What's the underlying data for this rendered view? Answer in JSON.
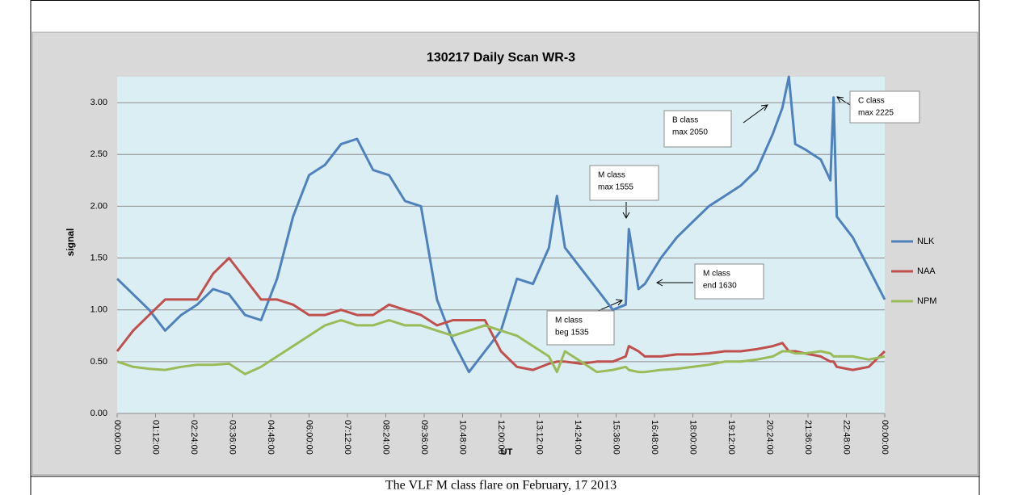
{
  "caption": "The VLF M class flare on February, 17 2013",
  "chart_data": {
    "type": "line",
    "title": "130217 Daily Scan WR-3",
    "ylabel": "signal",
    "xlabel": "UT",
    "xlim": [
      0,
      24
    ],
    "ylim": [
      0,
      3.25
    ],
    "grid": true,
    "legend": "right",
    "yticks": [
      {
        "value": 0,
        "label": "0.00"
      },
      {
        "value": 0.5,
        "label": "0.50"
      },
      {
        "value": 1,
        "label": "1.00"
      },
      {
        "value": 1.5,
        "label": "1.50"
      },
      {
        "value": 2,
        "label": "2.00"
      },
      {
        "value": 2.5,
        "label": "2.50"
      },
      {
        "value": 3,
        "label": "3.00"
      }
    ],
    "xticks": [
      {
        "value": 0,
        "label": "00:00:00"
      },
      {
        "value": 1.2,
        "label": "01:12:00"
      },
      {
        "value": 2.4,
        "label": "02:24:00"
      },
      {
        "value": 3.6,
        "label": "03:36:00"
      },
      {
        "value": 4.8,
        "label": "04:48:00"
      },
      {
        "value": 6,
        "label": "06:00:00"
      },
      {
        "value": 7.2,
        "label": "07:12:00"
      },
      {
        "value": 8.4,
        "label": "08:24:00"
      },
      {
        "value": 9.6,
        "label": "09:36:00"
      },
      {
        "value": 10.8,
        "label": "10:48:00"
      },
      {
        "value": 12,
        "label": "12:00:00"
      },
      {
        "value": 13.2,
        "label": "13:12:00"
      },
      {
        "value": 14.4,
        "label": "14:24:00"
      },
      {
        "value": 15.6,
        "label": "15:36:00"
      },
      {
        "value": 16.8,
        "label": "16:48:00"
      },
      {
        "value": 18,
        "label": "18:00:00"
      },
      {
        "value": 19.2,
        "label": "19:12:00"
      },
      {
        "value": 20.4,
        "label": "20:24:00"
      },
      {
        "value": 21.6,
        "label": "21:36:00"
      },
      {
        "value": 22.8,
        "label": "22:48:00"
      },
      {
        "value": 24,
        "label": "00:00:00"
      }
    ],
    "x": [
      0,
      0.5,
      1,
      1.5,
      2,
      2.5,
      3,
      3.5,
      4,
      4.5,
      5,
      5.5,
      6,
      6.5,
      7,
      7.5,
      8,
      8.5,
      9,
      9.5,
      10,
      10.5,
      11,
      11.5,
      12,
      12.5,
      13,
      13.5,
      13.75,
      14,
      14.5,
      15,
      15.5,
      15.9,
      16,
      16.3,
      16.5,
      17,
      17.5,
      18,
      18.5,
      19,
      19.5,
      20,
      20.5,
      20.8,
      21,
      21.2,
      21.5,
      22,
      22.3,
      22.4,
      22.5,
      23,
      23.5,
      24
    ],
    "series": [
      {
        "name": "NLK",
        "color": "#4f81bd",
        "values": [
          1.3,
          1.15,
          1.0,
          0.8,
          0.95,
          1.05,
          1.2,
          1.15,
          0.95,
          0.9,
          1.3,
          1.9,
          2.3,
          2.4,
          2.6,
          2.65,
          2.35,
          2.3,
          2.05,
          2.0,
          1.1,
          0.7,
          0.4,
          0.6,
          0.8,
          1.3,
          1.25,
          1.6,
          2.1,
          1.6,
          1.4,
          1.2,
          1.0,
          1.05,
          1.78,
          1.2,
          1.25,
          1.5,
          1.7,
          1.85,
          2.0,
          2.1,
          2.2,
          2.35,
          2.7,
          2.95,
          3.25,
          2.6,
          2.55,
          2.45,
          2.25,
          3.05,
          1.9,
          1.7,
          1.4,
          1.1
        ]
      },
      {
        "name": "NAA",
        "color": "#c0504d",
        "values": [
          0.6,
          0.8,
          0.95,
          1.1,
          1.1,
          1.1,
          1.35,
          1.5,
          1.3,
          1.1,
          1.1,
          1.05,
          0.95,
          0.95,
          1.0,
          0.95,
          0.95,
          1.05,
          1.0,
          0.95,
          0.85,
          0.9,
          0.9,
          0.9,
          0.6,
          0.45,
          0.42,
          0.48,
          0.5,
          0.5,
          0.48,
          0.5,
          0.5,
          0.55,
          0.65,
          0.6,
          0.55,
          0.55,
          0.57,
          0.57,
          0.58,
          0.6,
          0.6,
          0.62,
          0.65,
          0.68,
          0.6,
          0.6,
          0.58,
          0.55,
          0.5,
          0.5,
          0.45,
          0.42,
          0.45,
          0.6
        ]
      },
      {
        "name": "NPM",
        "color": "#9bbb59",
        "values": [
          0.5,
          0.45,
          0.43,
          0.42,
          0.45,
          0.47,
          0.47,
          0.48,
          0.38,
          0.45,
          0.55,
          0.65,
          0.75,
          0.85,
          0.9,
          0.85,
          0.85,
          0.9,
          0.85,
          0.85,
          0.8,
          0.75,
          0.8,
          0.85,
          0.8,
          0.75,
          0.65,
          0.55,
          0.4,
          0.6,
          0.5,
          0.4,
          0.42,
          0.45,
          0.42,
          0.4,
          0.4,
          0.42,
          0.43,
          0.45,
          0.47,
          0.5,
          0.5,
          0.52,
          0.55,
          0.6,
          0.6,
          0.58,
          0.58,
          0.6,
          0.58,
          0.55,
          0.55,
          0.55,
          0.52,
          0.55
        ]
      }
    ],
    "annotations": [
      {
        "lines": [
          "M class",
          "max 1555"
        ]
      },
      {
        "lines": [
          "B class",
          "max 2050"
        ]
      },
      {
        "lines": [
          "C class",
          "max 2225"
        ]
      },
      {
        "lines": [
          "M class",
          "end 1630"
        ]
      },
      {
        "lines": [
          "M class",
          "beg 1535"
        ]
      }
    ]
  }
}
